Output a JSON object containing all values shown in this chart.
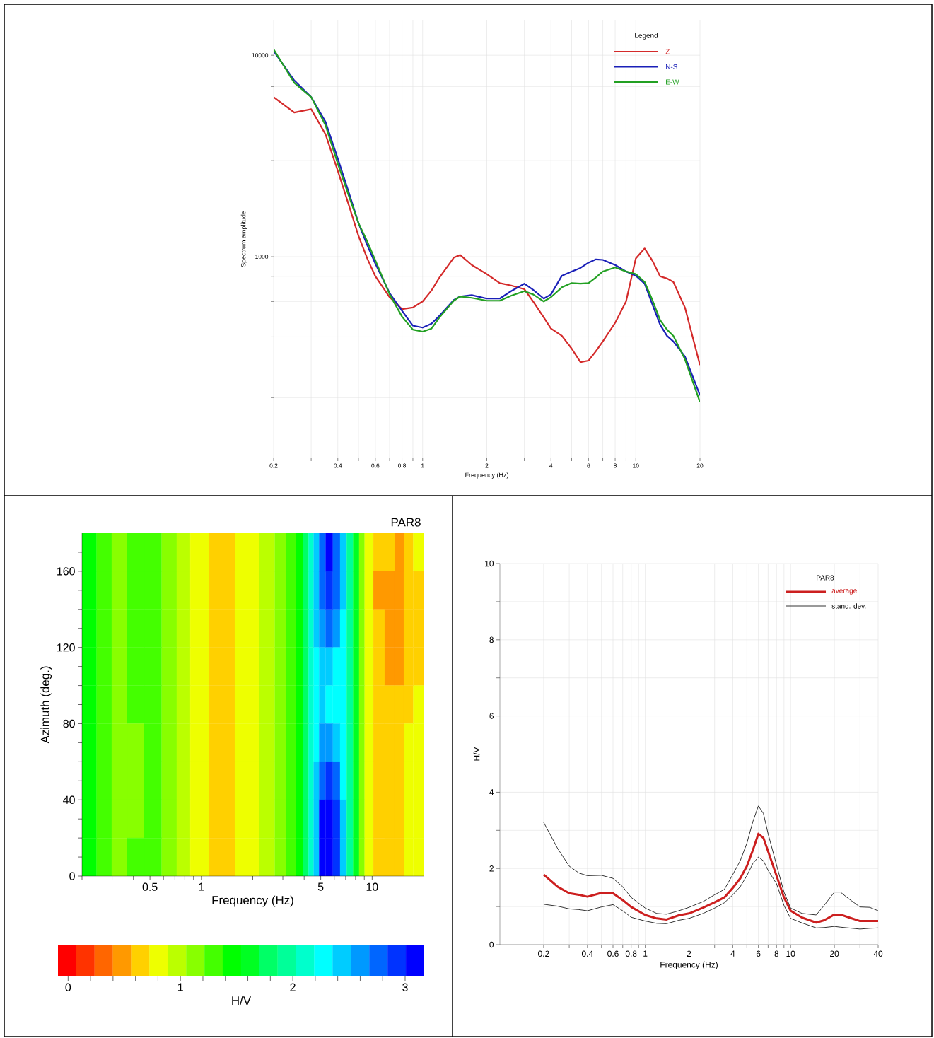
{
  "chart_data": [
    {
      "type": "line",
      "xlabel": "Frequency (Hz)",
      "ylabel": "Spectrum amplitude",
      "legend_title": "Legend",
      "log": "xy",
      "grid": true,
      "legend": "top right",
      "xlim": [
        0.2,
        20
      ],
      "ylim": [
        100,
        15000
      ],
      "xticks": [
        0.2,
        {
          "value": 0.3,
          "label": null
        },
        0.4,
        {
          "value": 0.5,
          "label": null
        },
        0.6,
        {
          "value": 0.7,
          "label": null
        },
        0.8,
        {
          "value": 0.9,
          "label": null
        },
        1,
        2,
        {
          "value": 3,
          "label": null
        },
        4,
        {
          "value": 5,
          "label": null
        },
        6,
        {
          "value": 7,
          "label": null
        },
        8,
        {
          "value": 9,
          "label": null
        },
        10,
        20
      ],
      "yticks": [
        {
          "value": 200,
          "label": null
        },
        {
          "value": 400,
          "label": null
        },
        {
          "value": 600,
          "label": null
        },
        {
          "value": 800,
          "label": null
        },
        1000,
        {
          "value": 3000,
          "label": null
        },
        {
          "value": 7000,
          "label": null
        },
        10000
      ],
      "x": [
        0.2,
        0.25,
        0.3,
        0.35,
        0.4,
        0.45,
        0.5,
        0.55,
        0.6,
        0.7,
        0.8,
        0.9,
        1,
        1.1,
        1.2,
        1.4,
        1.5,
        1.7,
        2,
        2.3,
        2.6,
        3,
        3.3,
        3.7,
        4,
        4.5,
        5,
        5.5,
        6,
        6.5,
        7,
        8,
        9,
        10,
        11,
        12,
        13,
        14,
        15,
        17,
        20
      ],
      "series": [
        {
          "name": "Z",
          "color": "#d42a2a",
          "values": [
            6200,
            5200,
            5400,
            4060,
            2670,
            1810,
            1270,
            980,
            800,
            630,
            550,
            560,
            600,
            680,
            790,
            990,
            1020,
            910,
            820,
            740,
            720,
            690,
            600,
            500,
            440,
            405,
            350,
            300,
            305,
            340,
            380,
            470,
            600,
            980,
            1100,
            950,
            800,
            780,
            750,
            560,
            290
          ]
        },
        {
          "name": "N-S",
          "color": "#1a20b8",
          "values": [
            10500,
            7500,
            6200,
            4680,
            3070,
            2090,
            1470,
            1140,
            925,
            660,
            540,
            455,
            445,
            465,
            510,
            610,
            635,
            645,
            620,
            620,
            675,
            735,
            685,
            620,
            650,
            805,
            845,
            880,
            935,
            970,
            965,
            910,
            845,
            805,
            735,
            575,
            460,
            405,
            380,
            320,
            205
          ]
        },
        {
          "name": "E-W",
          "color": "#22a022",
          "values": [
            10700,
            7300,
            6200,
            4500,
            2900,
            2010,
            1470,
            1190,
            960,
            650,
            505,
            435,
            425,
            440,
            500,
            605,
            635,
            625,
            605,
            605,
            640,
            675,
            650,
            600,
            630,
            705,
            740,
            735,
            740,
            790,
            845,
            885,
            845,
            820,
            750,
            605,
            485,
            435,
            405,
            310,
            190
          ]
        }
      ]
    },
    {
      "type": "heatmap",
      "title": "PAR8",
      "xlabel": "Frequency (Hz)",
      "ylabel": "Azimuth (deg.)",
      "clabel": "H/V",
      "log": "x",
      "xlim": [
        0.2,
        20
      ],
      "ylim": [
        0,
        180
      ],
      "xticks": [
        {
          "value": 0.2,
          "label": null
        },
        {
          "value": 0.3,
          "label": null
        },
        {
          "value": 0.4,
          "label": null
        },
        0.5,
        {
          "value": 0.6,
          "label": null
        },
        {
          "value": 0.7,
          "label": null
        },
        {
          "value": 0.8,
          "label": null
        },
        {
          "value": 0.9,
          "label": null
        },
        1,
        {
          "value": 2,
          "label": null
        },
        {
          "value": 3,
          "label": null
        },
        {
          "value": 4,
          "label": null
        },
        5,
        {
          "value": 6,
          "label": null
        },
        {
          "value": 7,
          "label": null
        },
        {
          "value": 8,
          "label": null
        },
        {
          "value": 9,
          "label": null
        },
        10
      ],
      "yticks": [
        0,
        {
          "value": 10,
          "label": null
        },
        {
          "value": 20,
          "label": null
        },
        {
          "value": 30,
          "label": null
        },
        40,
        {
          "value": 50,
          "label": null
        },
        {
          "value": 60,
          "label": null
        },
        {
          "value": 70,
          "label": null
        },
        80,
        {
          "value": 90,
          "label": null
        },
        {
          "value": 100,
          "label": null
        },
        {
          "value": 110,
          "label": null
        },
        120,
        {
          "value": 130,
          "label": null
        },
        {
          "value": 140,
          "label": null
        },
        {
          "value": 150,
          "label": null
        },
        160,
        {
          "value": 170,
          "label": null
        }
      ],
      "x": [
        0.22,
        0.27,
        0.33,
        0.41,
        0.52,
        0.66,
        0.78,
        0.95,
        1.3,
        1.9,
        2.5,
        2.9,
        3.4,
        3.8,
        4.1,
        4.4,
        4.7,
        5.1,
        5.6,
        6.2,
        6.8,
        7.4,
        8.1,
        8.7,
        9.4,
        11,
        12.8,
        14.4,
        16.4,
        18.5
      ],
      "cells": [
        [
          1.46,
          1.3,
          1.13,
          1.3,
          1.3,
          1.13,
          0.97,
          0.81,
          0.64,
          0.81,
          0.97,
          1.13,
          1.3,
          1.46,
          1.78,
          2.11,
          2.44,
          2.76,
          3.09,
          2.76,
          2.44,
          1.95,
          1.62,
          1.13,
          0.81,
          0.64,
          0.64,
          0.48,
          0.64,
          0.81
        ],
        [
          1.46,
          1.3,
          1.13,
          1.3,
          1.3,
          1.13,
          0.97,
          0.81,
          0.64,
          0.81,
          0.97,
          1.13,
          1.3,
          1.46,
          1.78,
          2.11,
          2.44,
          2.76,
          2.93,
          2.76,
          2.44,
          1.95,
          1.62,
          1.13,
          0.81,
          0.48,
          0.48,
          0.48,
          0.64,
          0.64
        ],
        [
          1.46,
          1.3,
          1.13,
          1.3,
          1.3,
          1.13,
          0.97,
          0.81,
          0.64,
          0.81,
          0.97,
          1.13,
          1.3,
          1.46,
          1.78,
          2.11,
          2.44,
          2.6,
          2.76,
          2.6,
          2.27,
          1.95,
          1.62,
          1.13,
          0.81,
          0.64,
          0.48,
          0.48,
          0.64,
          0.64
        ],
        [
          1.46,
          1.3,
          1.13,
          1.3,
          1.3,
          1.13,
          0.97,
          0.81,
          0.64,
          0.81,
          0.97,
          1.13,
          1.3,
          1.46,
          1.78,
          2.11,
          2.27,
          2.44,
          2.44,
          2.27,
          2.27,
          1.95,
          1.62,
          1.13,
          0.81,
          0.64,
          0.48,
          0.48,
          0.64,
          0.64
        ],
        [
          1.46,
          1.3,
          1.13,
          1.3,
          1.3,
          1.13,
          0.97,
          0.81,
          0.64,
          0.81,
          0.97,
          1.13,
          1.3,
          1.46,
          1.78,
          2.11,
          2.27,
          2.44,
          2.27,
          2.27,
          2.27,
          1.95,
          1.62,
          1.13,
          0.81,
          0.64,
          0.64,
          0.64,
          0.64,
          0.81
        ],
        [
          1.46,
          1.3,
          1.13,
          1.13,
          1.3,
          1.13,
          0.97,
          0.81,
          0.64,
          0.81,
          0.97,
          1.13,
          1.3,
          1.46,
          1.78,
          2.11,
          2.27,
          2.6,
          2.6,
          2.44,
          2.27,
          1.95,
          1.62,
          1.13,
          0.81,
          0.64,
          0.64,
          0.64,
          0.81,
          0.81
        ],
        [
          1.46,
          1.3,
          1.13,
          1.13,
          1.3,
          1.13,
          0.97,
          0.81,
          0.64,
          0.81,
          0.97,
          1.13,
          1.3,
          1.46,
          1.78,
          2.11,
          2.44,
          2.76,
          2.93,
          2.76,
          2.27,
          1.95,
          1.62,
          1.13,
          0.81,
          0.64,
          0.64,
          0.64,
          0.81,
          0.81
        ],
        [
          1.46,
          1.3,
          1.13,
          1.13,
          1.3,
          1.13,
          0.97,
          0.81,
          0.64,
          0.81,
          0.97,
          1.13,
          1.3,
          1.46,
          1.78,
          2.11,
          2.44,
          3.09,
          3.09,
          2.93,
          2.44,
          1.95,
          1.62,
          1.13,
          0.81,
          0.64,
          0.64,
          0.64,
          0.81,
          0.81
        ],
        [
          1.46,
          1.3,
          1.13,
          1.3,
          1.3,
          1.13,
          0.97,
          0.81,
          0.64,
          0.81,
          0.97,
          1.13,
          1.3,
          1.46,
          1.78,
          2.11,
          2.44,
          3.09,
          3.09,
          2.93,
          2.44,
          1.95,
          1.62,
          1.13,
          0.81,
          0.64,
          0.64,
          0.64,
          0.81,
          0.81
        ]
      ],
      "clim": [
        -0.09,
        3.17
      ],
      "cticks": [
        0,
        {
          "value": 0.2,
          "label": null
        },
        {
          "value": 0.4,
          "label": null
        },
        {
          "value": 0.6,
          "label": null
        },
        {
          "value": 0.8,
          "label": null
        },
        1,
        {
          "value": 1.2,
          "label": null
        },
        {
          "value": 1.4,
          "label": null
        },
        {
          "value": 1.6,
          "label": null
        },
        {
          "value": 1.8,
          "label": null
        },
        2,
        {
          "value": 2.2,
          "label": null
        },
        {
          "value": 2.4,
          "label": null
        },
        {
          "value": 2.6,
          "label": null
        },
        {
          "value": 2.8,
          "label": null
        },
        3
      ]
    },
    {
      "type": "line",
      "xlabel": "Frequency (Hz)",
      "ylabel": "H/V",
      "legend_title": "PAR8",
      "log": "x",
      "grid": true,
      "legend": "top right",
      "xlim": [
        0.1,
        40
      ],
      "ylim": [
        0,
        10
      ],
      "xticks": [
        0.2,
        {
          "value": 0.3,
          "label": null
        },
        0.4,
        {
          "value": 0.5,
          "label": null
        },
        0.6,
        {
          "value": 0.7,
          "label": null
        },
        0.8,
        {
          "value": 0.9,
          "label": null
        },
        1,
        2,
        {
          "value": 3,
          "label": null
        },
        4,
        {
          "value": 5,
          "label": null
        },
        6,
        {
          "value": 7,
          "label": null
        },
        8,
        {
          "value": 9,
          "label": null
        },
        10,
        20,
        {
          "value": 30,
          "label": null
        },
        40
      ],
      "yticks": [
        0,
        {
          "value": 1,
          "label": null
        },
        2,
        {
          "value": 3,
          "label": null
        },
        4,
        {
          "value": 5,
          "label": null
        },
        6,
        {
          "value": 7,
          "label": null
        },
        8,
        {
          "value": 9,
          "label": null
        },
        10
      ],
      "x": [
        0.2,
        0.25,
        0.3,
        0.35,
        0.4,
        0.5,
        0.6,
        0.7,
        0.8,
        1,
        1.2,
        1.4,
        1.7,
        2,
        2.5,
        3,
        3.5,
        4,
        4.5,
        5,
        5.5,
        6,
        6.5,
        7,
        8,
        9,
        10,
        12,
        15,
        17,
        20,
        22,
        25,
        30,
        35,
        40
      ],
      "series": [
        {
          "name": "average",
          "color": "#cc1f1f",
          "values": [
            1.84,
            1.52,
            1.35,
            1.31,
            1.26,
            1.36,
            1.35,
            1.17,
            0.99,
            0.78,
            0.69,
            0.66,
            0.77,
            0.82,
            0.97,
            1.11,
            1.24,
            1.49,
            1.74,
            2.06,
            2.48,
            2.91,
            2.8,
            2.45,
            1.81,
            1.24,
            0.89,
            0.71,
            0.58,
            0.64,
            0.79,
            0.79,
            0.72,
            0.62,
            0.62,
            0.62
          ]
        },
        {
          "name": "stand. dev.",
          "color": "#000000",
          "values": [
            3.21,
            2.52,
            2.06,
            1.88,
            1.81,
            1.82,
            1.74,
            1.52,
            1.24,
            0.96,
            0.82,
            0.8,
            0.89,
            0.98,
            1.13,
            1.31,
            1.45,
            1.84,
            2.2,
            2.66,
            3.23,
            3.64,
            3.44,
            2.91,
            2.09,
            1.38,
            0.96,
            0.82,
            0.78,
            1.03,
            1.38,
            1.38,
            1.21,
            0.99,
            0.98,
            0.89
          ]
        },
        {
          "color": "#000000",
          "values": [
            1.06,
            1.01,
            0.94,
            0.92,
            0.89,
            0.99,
            1.05,
            0.89,
            0.72,
            0.62,
            0.56,
            0.55,
            0.64,
            0.69,
            0.82,
            0.96,
            1.1,
            1.31,
            1.52,
            1.81,
            2.13,
            2.3,
            2.2,
            1.95,
            1.6,
            1.03,
            0.69,
            0.57,
            0.44,
            0.45,
            0.48,
            0.46,
            0.44,
            0.41,
            0.43,
            0.44
          ]
        }
      ]
    }
  ]
}
